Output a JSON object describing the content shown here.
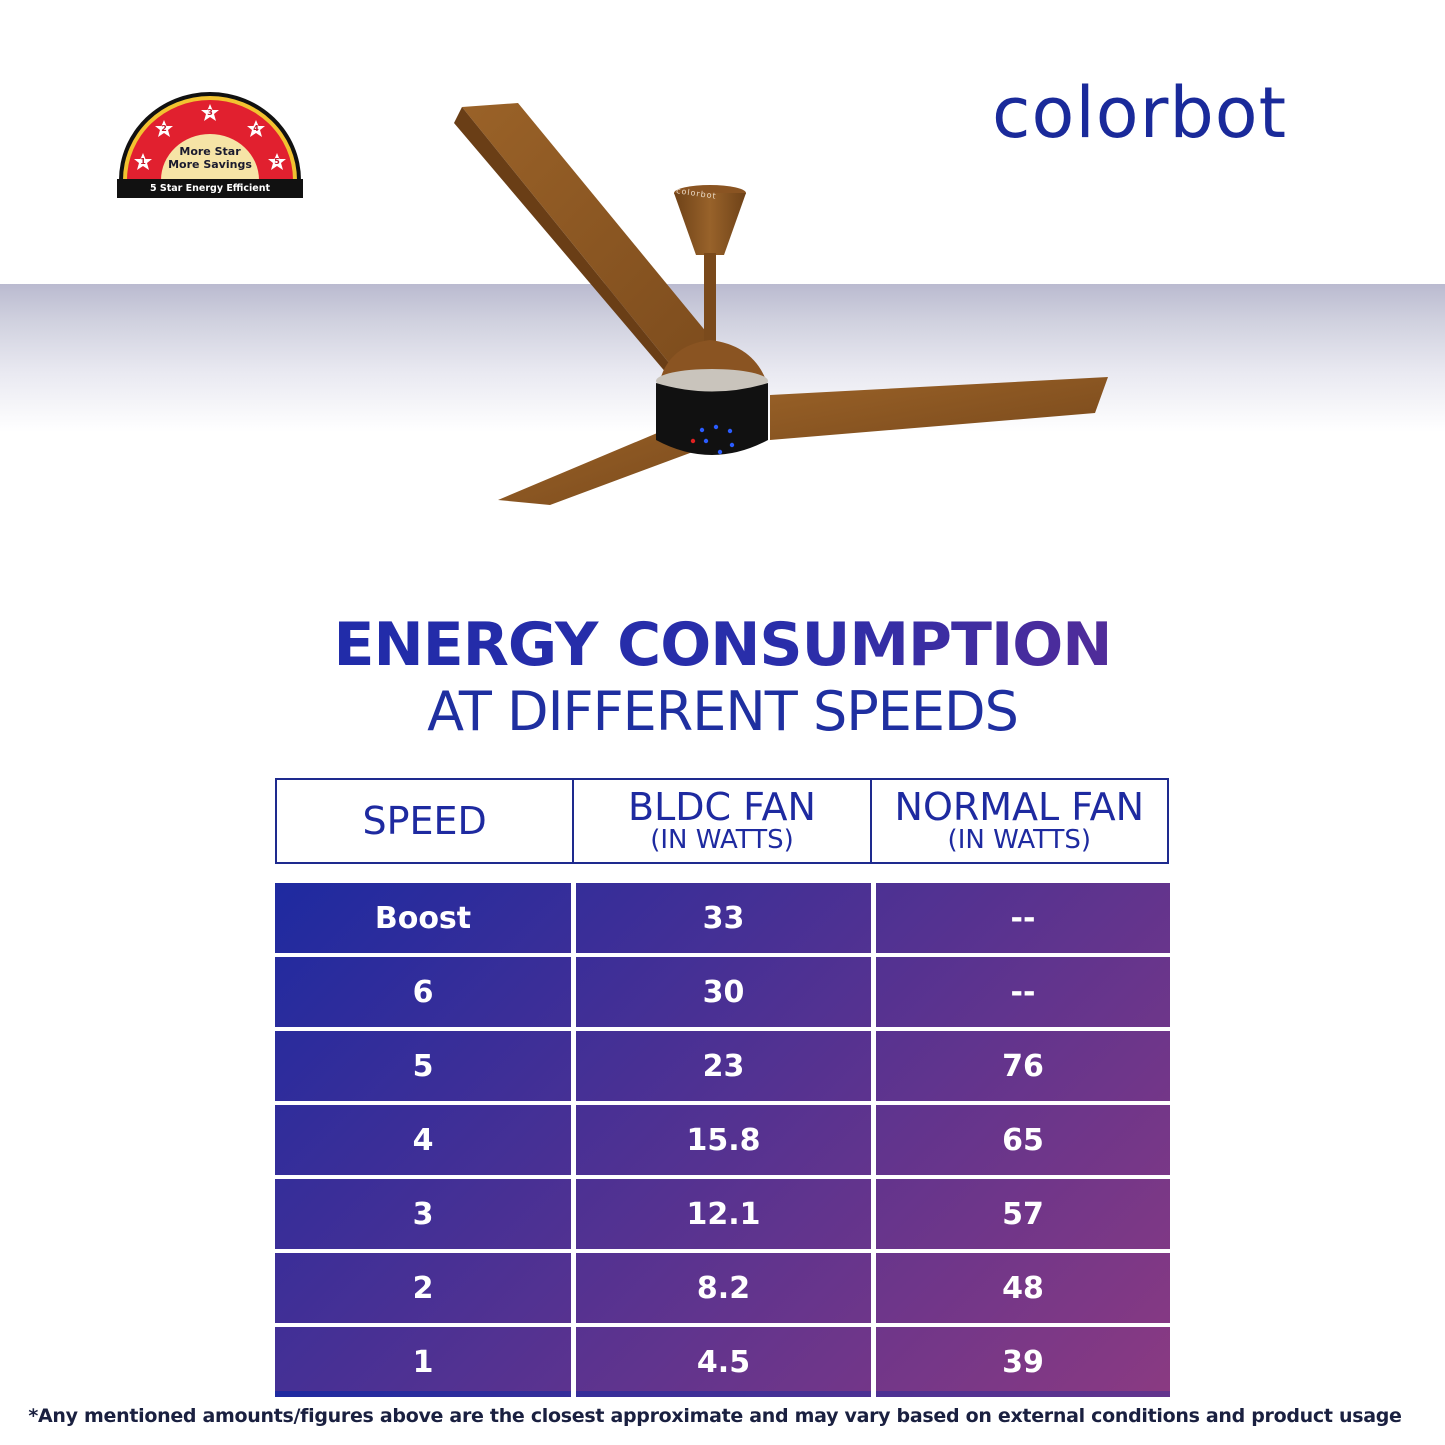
{
  "badge": {
    "line1": "More Star",
    "line2": "More Savings",
    "label": "5 Star Energy Efficient",
    "stars": [
      "1",
      "2",
      "3",
      "4",
      "5"
    ]
  },
  "brand": {
    "logo_text": "colorbot",
    "fan_engraving": "colorbot"
  },
  "heading": {
    "title": "ENERGY CONSUMPTION",
    "subtitle": "AT DIFFERENT SPEEDS"
  },
  "table": {
    "headers": [
      {
        "label": "SPEED",
        "sub": ""
      },
      {
        "label": "BLDC FAN",
        "sub": "(IN WATTS)"
      },
      {
        "label": "NORMAL FAN",
        "sub": "(IN WATTS)"
      }
    ],
    "rows": [
      [
        "Boost",
        "33",
        "--"
      ],
      [
        "6",
        "30",
        "--"
      ],
      [
        "5",
        "23",
        "76"
      ],
      [
        "4",
        "15.8",
        "65"
      ],
      [
        "3",
        "12.1",
        "57"
      ],
      [
        "2",
        "8.2",
        "48"
      ],
      [
        "1",
        "4.5",
        "39"
      ]
    ]
  },
  "footnote": "*Any mentioned amounts/figures above are the closest approximate and may vary based on external conditions and product usage",
  "colors": {
    "brand_blue": "#1a2a9a",
    "gradient_start": "#1e2aa0",
    "gradient_end": "#8a3a82",
    "fan_brown": "#8a5422",
    "badge_red": "#e0202e"
  }
}
